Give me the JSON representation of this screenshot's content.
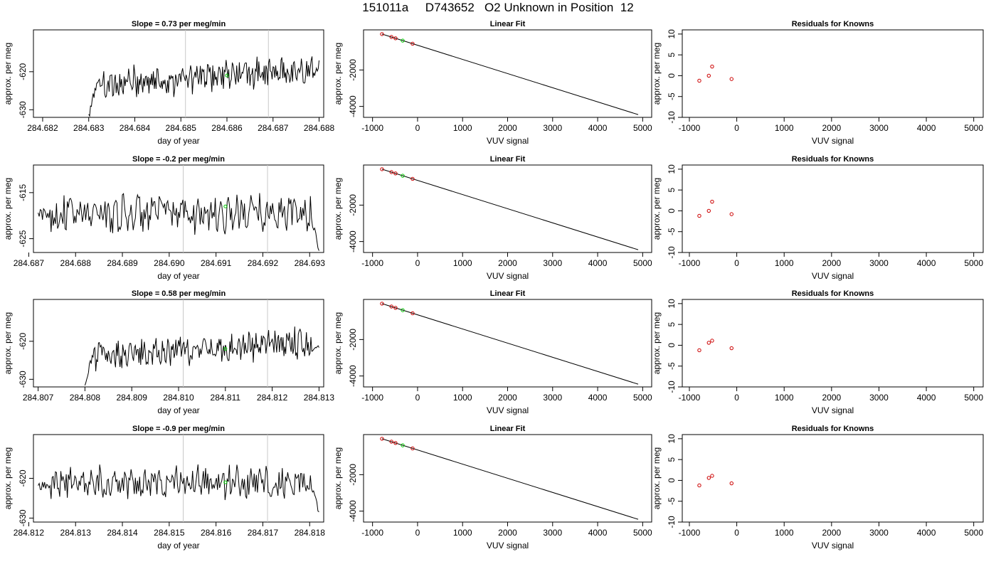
{
  "title": "151011a     D743652   O2 Unknown in Position  12",
  "chart_data": [
    {
      "panel": "slope",
      "row": 1,
      "type": "line",
      "title": "Slope =  0.73  per meg/min",
      "xlabel": "day of year",
      "ylabel": "approx. per meg",
      "xlim": [
        284.6818,
        284.6881
      ],
      "ylim": [
        -632,
        -609
      ],
      "xticks": [
        "284.682",
        "284.683",
        "284.684",
        "284.685",
        "284.686",
        "284.687",
        "284.688"
      ],
      "yticks": [
        "-630",
        "-620"
      ],
      "series_start": 284.683,
      "series_end": 284.688,
      "series_first": -632,
      "series_level": -621.5,
      "series_final": -618,
      "vlines": [
        284.6851,
        284.6869
      ],
      "highlight_point": {
        "x": 284.686,
        "y": -621
      }
    },
    {
      "panel": "fit",
      "row": 1,
      "type": "scatter",
      "title": "Linear Fit",
      "xlabel": "VUV signal",
      "ylabel": "approx. per meg",
      "xlim": [
        -1200,
        5200
      ],
      "ylim": [
        -4600,
        200
      ],
      "xticks": [
        "-1000",
        "0",
        "1000",
        "2000",
        "3000",
        "4000",
        "5000"
      ],
      "yticks": [
        "-4000",
        "-2000"
      ],
      "line": [
        [
          -790,
          -30
        ],
        [
          4900,
          -4450
        ]
      ],
      "points": [
        [
          -790,
          -30
        ],
        [
          -580,
          -190
        ],
        [
          -490,
          -260
        ],
        [
          -110,
          -560
        ]
      ],
      "highlight_point": [
        -330,
        -390
      ]
    },
    {
      "panel": "residuals",
      "row": 1,
      "type": "scatter",
      "title": "Residuals for Knowns",
      "xlabel": "VUV signal",
      "ylabel": "approx. per meg",
      "xlim": [
        -1150,
        5200
      ],
      "ylim": [
        -10,
        11
      ],
      "xticks": [
        "-1000",
        "0",
        "1000",
        "2000",
        "3000",
        "4000",
        "5000"
      ],
      "yticks": [
        "-10",
        "-5",
        "0",
        "5",
        "10"
      ],
      "points": [
        [
          -790,
          -1.2
        ],
        [
          -590,
          0
        ],
        [
          -520,
          2.2
        ],
        [
          -110,
          -0.8
        ]
      ]
    },
    {
      "panel": "slope",
      "row": 2,
      "type": "line",
      "title": "Slope =  -0.2  per meg/min",
      "xlabel": "day of year",
      "ylabel": "approx. per meg",
      "xlim": [
        284.6871,
        284.6933
      ],
      "ylim": [
        -628,
        -609
      ],
      "xticks": [
        "284.687",
        "284.688",
        "284.689",
        "284.690",
        "284.691",
        "284.692",
        "284.693"
      ],
      "yticks": [
        "-625",
        "-615"
      ],
      "series_start": 284.6872,
      "series_end": 284.6932,
      "series_first": -620,
      "series_level": -619.5,
      "series_final": -628,
      "vlines": [
        284.6903,
        284.6921
      ],
      "highlight_point": {
        "x": 284.6912,
        "y": -618
      }
    },
    {
      "panel": "fit",
      "row": 2,
      "type": "scatter",
      "title": "Linear Fit",
      "xlabel": "VUV signal",
      "ylabel": "approx. per meg",
      "xlim": [
        -1200,
        5200
      ],
      "ylim": [
        -4600,
        200
      ],
      "xticks": [
        "-1000",
        "0",
        "1000",
        "2000",
        "3000",
        "4000",
        "5000"
      ],
      "yticks": [
        "-4000",
        "-2000"
      ],
      "line": [
        [
          -790,
          -30
        ],
        [
          4900,
          -4450
        ]
      ],
      "points": [
        [
          -790,
          -30
        ],
        [
          -580,
          -190
        ],
        [
          -490,
          -260
        ],
        [
          -110,
          -560
        ]
      ],
      "highlight_point": [
        -330,
        -390
      ]
    },
    {
      "panel": "residuals",
      "row": 2,
      "type": "scatter",
      "title": "Residuals for Knowns",
      "xlabel": "VUV signal",
      "ylabel": "approx. per meg",
      "xlim": [
        -1150,
        5200
      ],
      "ylim": [
        -10,
        11
      ],
      "xticks": [
        "-1000",
        "0",
        "1000",
        "2000",
        "3000",
        "4000",
        "5000"
      ],
      "yticks": [
        "-10",
        "-5",
        "0",
        "5",
        "10"
      ],
      "points": [
        [
          -790,
          -1.2
        ],
        [
          -590,
          0
        ],
        [
          -520,
          2.2
        ],
        [
          -110,
          -0.8
        ]
      ]
    },
    {
      "panel": "slope",
      "row": 3,
      "type": "line",
      "title": "Slope =  0.58  per meg/min",
      "xlabel": "day of year",
      "ylabel": "approx. per meg",
      "xlim": [
        284.8069,
        284.8131
      ],
      "ylim": [
        -632,
        -609
      ],
      "xticks": [
        "284.807",
        "284.808",
        "284.809",
        "284.810",
        "284.811",
        "284.812",
        "284.813"
      ],
      "yticks": [
        "-630",
        "-620"
      ],
      "series_start": 284.808,
      "series_end": 284.813,
      "series_first": -632,
      "series_level": -622,
      "series_final": -622,
      "vlines": [
        284.8101,
        284.8119
      ],
      "highlight_point": {
        "x": 284.811,
        "y": -622
      }
    },
    {
      "panel": "fit",
      "row": 3,
      "type": "scatter",
      "title": "Linear Fit",
      "xlabel": "VUV signal",
      "ylabel": "approx. per meg",
      "xlim": [
        -1200,
        5200
      ],
      "ylim": [
        -4600,
        200
      ],
      "xticks": [
        "-1000",
        "0",
        "1000",
        "2000",
        "3000",
        "4000",
        "5000"
      ],
      "yticks": [
        "-4000",
        "-2000"
      ],
      "line": [
        [
          -790,
          -30
        ],
        [
          4900,
          -4450
        ]
      ],
      "points": [
        [
          -790,
          -30
        ],
        [
          -580,
          -190
        ],
        [
          -490,
          -260
        ],
        [
          -110,
          -560
        ]
      ],
      "highlight_point": [
        -330,
        -390
      ]
    },
    {
      "panel": "residuals",
      "row": 3,
      "type": "scatter",
      "title": "Residuals for Knowns",
      "xlabel": "VUV signal",
      "ylabel": "approx. per meg",
      "xlim": [
        -1150,
        5200
      ],
      "ylim": [
        -10,
        11
      ],
      "xticks": [
        "-1000",
        "0",
        "1000",
        "2000",
        "3000",
        "4000",
        "5000"
      ],
      "yticks": [
        "-10",
        "-5",
        "0",
        "5",
        "10"
      ],
      "points": [
        [
          -790,
          -1.2
        ],
        [
          -590,
          0.6
        ],
        [
          -520,
          1.1
        ],
        [
          -110,
          -0.7
        ]
      ]
    },
    {
      "panel": "slope",
      "row": 4,
      "type": "line",
      "title": "Slope =  -0.9  per meg/min",
      "xlabel": "day of year",
      "ylabel": "approx. per meg",
      "xlim": [
        284.8121,
        284.8183
      ],
      "ylim": [
        -631,
        -609
      ],
      "xticks": [
        "284.812",
        "284.813",
        "284.814",
        "284.815",
        "284.816",
        "284.817",
        "284.818"
      ],
      "yticks": [
        "-630",
        "-620"
      ],
      "series_start": 284.8122,
      "series_end": 284.8182,
      "series_first": -622,
      "series_level": -621,
      "series_final": -629,
      "vlines": [
        284.8153,
        284.8171
      ],
      "highlight_point": {
        "x": 284.8162,
        "y": -621
      }
    },
    {
      "panel": "fit",
      "row": 4,
      "type": "scatter",
      "title": "Linear Fit",
      "xlabel": "VUV signal",
      "ylabel": "approx. per meg",
      "xlim": [
        -1200,
        5200
      ],
      "ylim": [
        -4600,
        200
      ],
      "xticks": [
        "-1000",
        "0",
        "1000",
        "2000",
        "3000",
        "4000",
        "5000"
      ],
      "yticks": [
        "-4000",
        "-2000"
      ],
      "line": [
        [
          -790,
          -30
        ],
        [
          4900,
          -4450
        ]
      ],
      "points": [
        [
          -790,
          -30
        ],
        [
          -580,
          -190
        ],
        [
          -490,
          -260
        ],
        [
          -110,
          -560
        ]
      ],
      "highlight_point": [
        -330,
        -390
      ]
    },
    {
      "panel": "residuals",
      "row": 4,
      "type": "scatter",
      "title": "Residuals for Knowns",
      "xlabel": "VUV signal",
      "ylabel": "approx. per meg",
      "xlim": [
        -1150,
        5200
      ],
      "ylim": [
        -10,
        11
      ],
      "xticks": [
        "-1000",
        "0",
        "1000",
        "2000",
        "3000",
        "4000",
        "5000"
      ],
      "yticks": [
        "-10",
        "-5",
        "0",
        "5",
        "10"
      ],
      "points": [
        [
          -790,
          -1.2
        ],
        [
          -590,
          0.6
        ],
        [
          -520,
          1.1
        ],
        [
          -110,
          -0.7
        ]
      ]
    }
  ],
  "colors": {
    "line": "#000000",
    "vline": "#c8c8c8",
    "known_point": "#cc0000",
    "unknown_point": "#00cc00"
  }
}
